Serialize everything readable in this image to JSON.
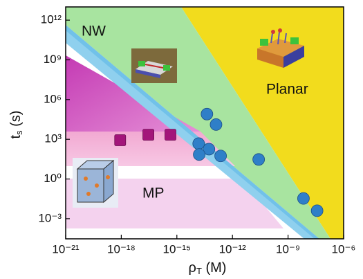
{
  "chart_data": {
    "type": "scatter",
    "xlabel": {
      "main": "ρ",
      "sub": "T",
      "unit": " (M)"
    },
    "ylabel": {
      "main": "t",
      "sub": "s",
      "unit": " (s)"
    },
    "annotations": [
      "NW",
      "Planar",
      "MP"
    ],
    "xscale": "log",
    "yscale": "log",
    "xlim": [
      1e-21,
      1e-06
    ],
    "ylim": [
      3e-05,
      10000000000000.0
    ],
    "xticks": [
      {
        "value": 1e-21,
        "label": "10⁻²¹"
      },
      {
        "value": 1e-18,
        "label": "10⁻¹⁸"
      },
      {
        "value": 1e-15,
        "label": "10⁻¹⁵"
      },
      {
        "value": 1e-12,
        "label": "10⁻¹²"
      },
      {
        "value": 1e-09,
        "label": "10⁻⁹"
      },
      {
        "value": 1e-06,
        "label": "10⁻⁶"
      }
    ],
    "yticks": [
      {
        "value": 0.001,
        "label": "10⁻³"
      },
      {
        "value": 1,
        "label": "10⁰"
      },
      {
        "value": 1000,
        "label": "10³"
      },
      {
        "value": 1000000,
        "label": "10⁶"
      },
      {
        "value": 1000000000,
        "label": "10⁹"
      },
      {
        "value": 1000000000000,
        "label": "10¹²"
      }
    ],
    "series": [
      {
        "color": "#a3157a",
        "marker": "square",
        "x": [
          8.7e-19,
          2.9e-17,
          4.5e-16
        ],
        "values": [
          850,
          2200,
          2200
        ]
      },
      {
        "color": "#2f7fc8",
        "marker": "circle",
        "x": [
          4.2e-14,
          1.3e-13,
          1.5e-14,
          5.4e-14,
          1.6e-14,
          2.3e-13,
          2.6e-11,
          6.8e-09,
          3.7e-08
        ],
        "values": [
          80000,
          13000,
          470,
          180,
          70,
          55,
          30,
          0.034,
          0.004
        ]
      }
    ]
  }
}
